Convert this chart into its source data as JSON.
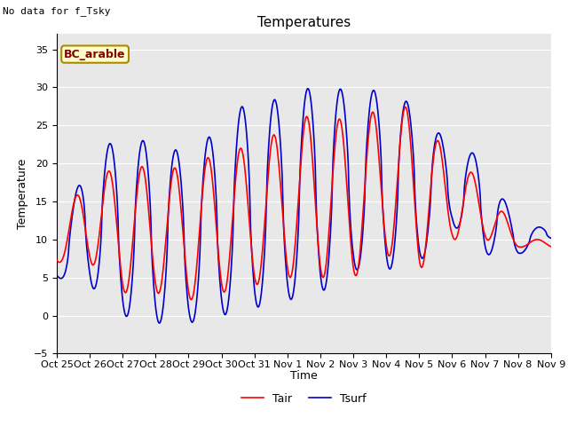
{
  "title": "Temperatures",
  "xlabel": "Time",
  "ylabel": "Temperature",
  "annotation": "No data for f_Tsky",
  "legend_label": "BC_arable",
  "line1_label": "Tair",
  "line2_label": "Tsurf",
  "line1_color": "#FF0000",
  "line2_color": "#0000CC",
  "ylim": [
    -5,
    37
  ],
  "yticks": [
    -5,
    0,
    5,
    10,
    15,
    20,
    25,
    30,
    35
  ],
  "bg_color": "#E8E8E8",
  "xtick_labels": [
    "Oct 25",
    "Oct 26",
    "Oct 27",
    "Oct 28",
    "Oct 29",
    "Oct 30",
    "Oct 31",
    "Nov 1",
    "Nov 2",
    "Nov 3",
    "Nov 4",
    "Nov 5",
    "Nov 6",
    "Nov 7",
    "Nov 8",
    "Nov 9"
  ],
  "legend_box_color": "#FFFFCC",
  "legend_box_edge": "#AA8800",
  "title_fontsize": 11,
  "axis_fontsize": 9,
  "tick_fontsize": 8,
  "annot_fontsize": 8,
  "legend_label_fontsize": 9,
  "bc_label_fontsize": 9
}
